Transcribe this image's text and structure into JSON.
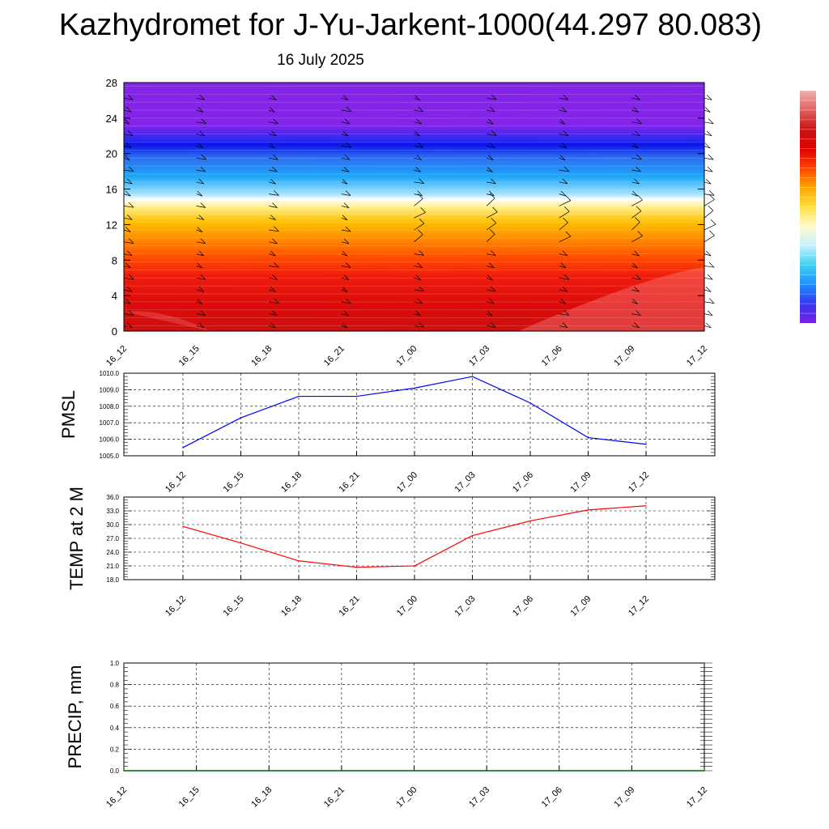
{
  "page": {
    "title": "Kazhydromet for J-Yu-Jarkent-1000(44.297 80.083)",
    "subtitle": "16 July 2025"
  },
  "chart_data": [
    {
      "type": "heatmap",
      "name": "cross-section",
      "time_labels": [
        "16_12",
        "16_15",
        "16_18",
        "16_21",
        "17_00",
        "17_03",
        "17_06",
        "17_09",
        "17_12"
      ],
      "ylim": [
        0,
        28
      ],
      "yticks": [
        0,
        4,
        8,
        12,
        16,
        20,
        24,
        28
      ],
      "colormap": "purple-blue-cyan-white-yellow-orange-red",
      "colorbar_colors": [
        "#7b1fe6",
        "#3535f0",
        "#1e90ff",
        "#3fd0f0",
        "#c8f0ff",
        "#fffacd",
        "#ffe040",
        "#ffa500",
        "#ff4500",
        "#e00000",
        "#c81414",
        "#e06060",
        "#f0b0b0"
      ],
      "wind_barbs": true
    },
    {
      "type": "line",
      "name": "pmsl",
      "ylabel": "PMSL",
      "categories": [
        "16_12",
        "16_15",
        "16_18",
        "16_21",
        "17_00",
        "17_03",
        "17_06",
        "17_09",
        "17_12"
      ],
      "values": [
        1005.5,
        1007.3,
        1008.6,
        1008.6,
        1009.1,
        1009.8,
        1008.2,
        1006.1,
        1005.7
      ],
      "ylim": [
        1005.0,
        1010.0
      ],
      "yticks": [
        "1005.0",
        "1006.0",
        "1007.0",
        "1008.0",
        "1009.0",
        "1010.0"
      ],
      "color": "#0000ff",
      "grid": true
    },
    {
      "type": "line",
      "name": "temp2m",
      "ylabel": "TEMP at 2 M",
      "categories": [
        "16_12",
        "16_15",
        "16_18",
        "16_21",
        "17_00",
        "17_03",
        "17_06",
        "17_09",
        "17_12"
      ],
      "values": [
        29.6,
        26.0,
        22.1,
        20.7,
        21.0,
        27.6,
        30.8,
        33.2,
        34.1
      ],
      "ylim": [
        18.0,
        36.0
      ],
      "yticks": [
        "18.0",
        "21.0",
        "24.0",
        "27.0",
        "30.0",
        "33.0",
        "36.0"
      ],
      "color": "#ff0000",
      "grid": true
    },
    {
      "type": "line",
      "name": "precip",
      "ylabel": "PRECIP, mm",
      "categories": [
        "16_12",
        "16_15",
        "16_18",
        "16_21",
        "17_00",
        "17_03",
        "17_06",
        "17_09",
        "17_12"
      ],
      "values": [
        0,
        0,
        0,
        0,
        0,
        0,
        0,
        0,
        0
      ],
      "ylim": [
        0.0,
        1.0
      ],
      "yticks": [
        "0.0",
        "0.2",
        "0.4",
        "0.6",
        "0.8",
        "1.0"
      ],
      "color": "#006400",
      "grid": true
    }
  ]
}
